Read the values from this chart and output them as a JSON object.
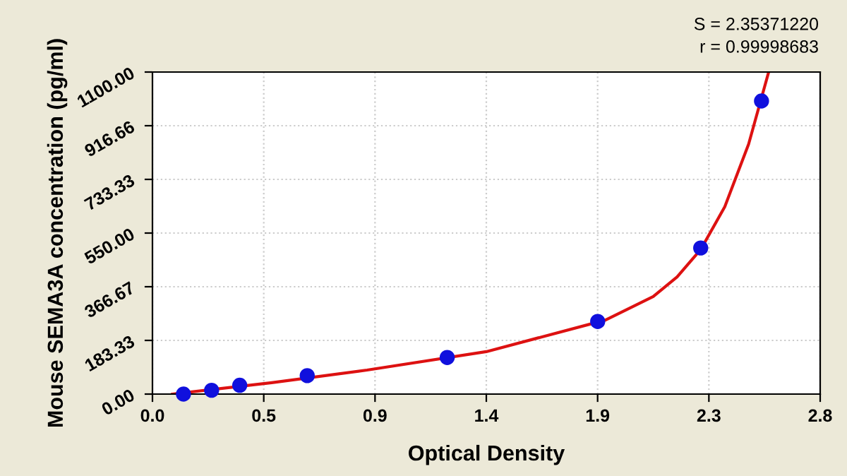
{
  "chart_data": {
    "type": "scatter",
    "xlabel": "Optical Density",
    "ylabel": "Mouse SEMA3A concentration (pg/ml)",
    "annotations": [
      "S = 2.35371220",
      "r = 0.99998683"
    ],
    "series": [
      {
        "type": "line",
        "marker": "none",
        "color": "#dd1111",
        "x": [
          0.084,
          0.5,
          0.9,
          1.4,
          1.9,
          2.1,
          2.2,
          2.3,
          2.4,
          2.5,
          2.584
        ],
        "values": [
          0,
          39,
          82,
          145,
          253,
          333,
          400,
          495,
          640,
          854,
          1100
        ]
      },
      {
        "marker": "circle",
        "color": "#1010dd",
        "x": [
          0.13,
          0.248,
          0.366,
          0.649,
          1.236,
          1.867,
          2.299,
          2.554
        ],
        "values": [
          0,
          13,
          30,
          63,
          125,
          248,
          499,
          1001
        ]
      }
    ],
    "xlim": [
      0,
      2.8
    ],
    "ylim": [
      0,
      1100
    ],
    "xticks": [
      {
        "value": 0,
        "label": "0.0"
      },
      {
        "value": 0.4667,
        "label": "0.5"
      },
      {
        "value": 0.9333,
        "label": "0.9"
      },
      {
        "value": 1.4,
        "label": "1.4"
      },
      {
        "value": 1.8667,
        "label": "1.9"
      },
      {
        "value": 2.3333,
        "label": "2.3"
      },
      {
        "value": 2.8,
        "label": "2.8"
      }
    ],
    "yticks": [
      {
        "value": 0,
        "label": "0.00"
      },
      {
        "value": 183.33,
        "label": "183.33"
      },
      {
        "value": 366.67,
        "label": "366.67"
      },
      {
        "value": 550,
        "label": "550.00"
      },
      {
        "value": 733.33,
        "label": "733.33"
      },
      {
        "value": 916.66,
        "label": "916.66"
      },
      {
        "value": 1100,
        "label": "1100.00"
      }
    ],
    "grid": true
  }
}
